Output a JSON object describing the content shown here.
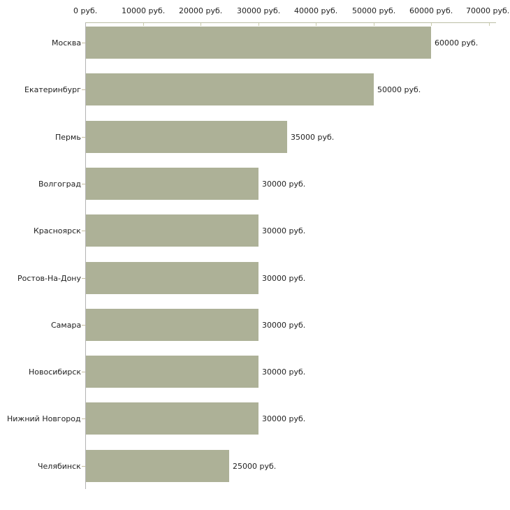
{
  "chart_data": {
    "type": "bar",
    "orientation": "horizontal",
    "title": "",
    "xlabel": "",
    "ylabel": "",
    "categories": [
      "Москва",
      "Екатеринбург",
      "Пермь",
      "Волгоград",
      "Красноярск",
      "Ростов-На-Дону",
      "Самара",
      "Новосибирск",
      "Нижний Новгород",
      "Челябинск"
    ],
    "values": [
      60000,
      50000,
      35000,
      30000,
      30000,
      30000,
      30000,
      30000,
      30000,
      25000
    ],
    "value_labels": [
      "60000 руб.",
      "50000 руб.",
      "35000 руб.",
      "30000 руб.",
      "30000 руб.",
      "30000 руб.",
      "30000 руб.",
      "30000 руб.",
      "30000 руб.",
      "25000 руб."
    ],
    "x_ticks": [
      0,
      10000,
      20000,
      30000,
      40000,
      50000,
      60000,
      70000
    ],
    "x_tick_labels": [
      "0 руб.",
      "10000 руб.",
      "20000 руб.",
      "30000 руб.",
      "40000 руб.",
      "50000 руб.",
      "60000 руб.",
      "70000 руб."
    ],
    "xlim": [
      0,
      70000
    ],
    "grid": false,
    "legend": null,
    "colors": {
      "bar_fill": "#adb197",
      "x_axis_line": "#bcbfa6",
      "x_tick": "#caccab",
      "y_axis_line": "#b3b3b3",
      "category_tick": "#c5bd9e",
      "text": "#1f1f1f",
      "background": "#ffffff"
    }
  }
}
